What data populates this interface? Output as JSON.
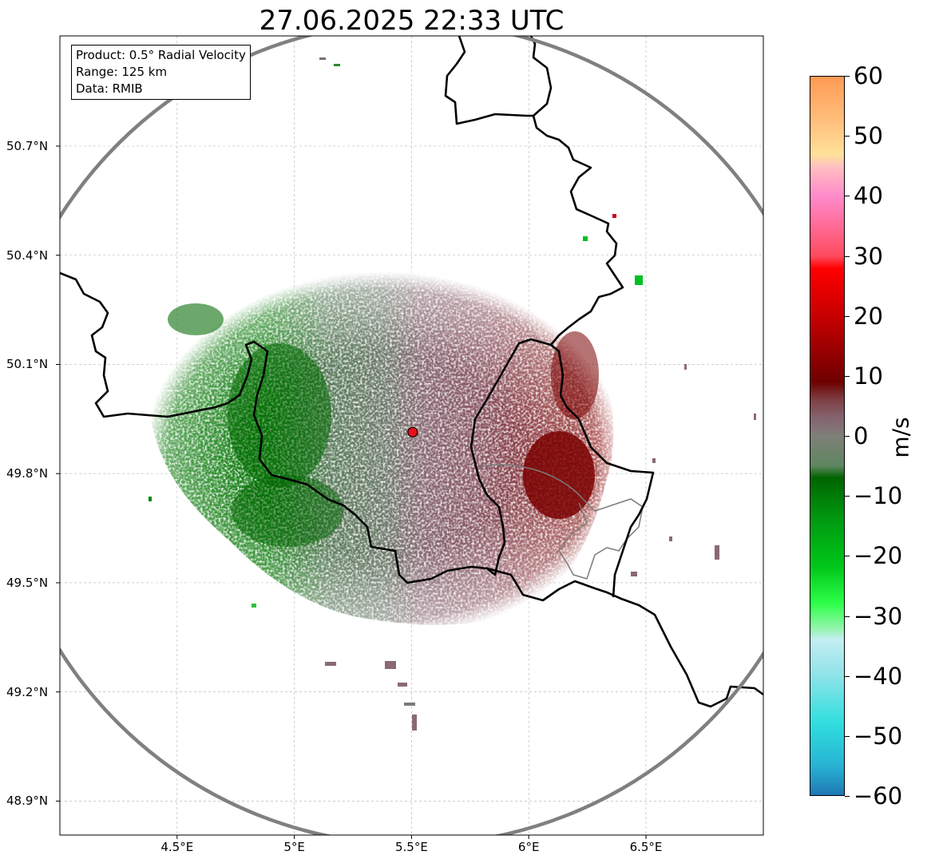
{
  "title": "27.06.2025 22:33 UTC",
  "info": {
    "product": "Product: 0.5° Radial Velocity",
    "range": "Range: 125 km",
    "data": "Data: RMIB"
  },
  "axes": {
    "lat_labels": [
      "50.7°N",
      "50.4°N",
      "50.1°N",
      "49.8°N",
      "49.5°N",
      "49.2°N",
      "48.9°N"
    ],
    "lat_values": [
      50.7,
      50.4,
      50.1,
      49.8,
      49.5,
      49.2,
      48.9
    ],
    "lon_labels": [
      "4.5°E",
      "5°E",
      "5.5°E",
      "6°E",
      "6.5°E"
    ],
    "lon_values": [
      4.5,
      5.0,
      5.5,
      6.0,
      6.5
    ],
    "lat_range": [
      48.8,
      51.0
    ],
    "lon_range": [
      4.0,
      7.0
    ]
  },
  "radar_site": {
    "lon": 5.505,
    "lat": 49.914,
    "color": "#e8101e"
  },
  "range_ring_color": "#808080",
  "colorbar": {
    "label": "m/s",
    "min": -60,
    "max": 60,
    "tick_labels": [
      "60",
      "50",
      "40",
      "30",
      "20",
      "10",
      "0",
      "−10",
      "−20",
      "−30",
      "−40",
      "−50",
      "−60"
    ],
    "tick_values": [
      60,
      50,
      40,
      30,
      20,
      10,
      0,
      -10,
      -20,
      -30,
      -40,
      -50,
      -60
    ],
    "stops": [
      [
        -60,
        "#1f77b4"
      ],
      [
        -55,
        "#28b4d4"
      ],
      [
        -48,
        "#30dede"
      ],
      [
        -40,
        "#8fe3e8"
      ],
      [
        -34,
        "#c3eef2"
      ],
      [
        -32,
        "#8ff5a8"
      ],
      [
        -28,
        "#2eff4a"
      ],
      [
        -22,
        "#00c81a"
      ],
      [
        -14,
        "#009a10"
      ],
      [
        -7,
        "#006400"
      ],
      [
        -5,
        "#5f8660"
      ],
      [
        0,
        "#7f7f78"
      ],
      [
        3,
        "#85636f"
      ],
      [
        6,
        "#7e4045"
      ],
      [
        9,
        "#6e0000"
      ],
      [
        20,
        "#c80000"
      ],
      [
        28,
        "#ff0000"
      ],
      [
        30,
        "#ff4a5e"
      ],
      [
        40,
        "#ff8acb"
      ],
      [
        45,
        "#ffc0c0"
      ],
      [
        47,
        "#ffe29a"
      ],
      [
        52,
        "#ffc27f"
      ],
      [
        60,
        "#ff9a55"
      ]
    ]
  }
}
